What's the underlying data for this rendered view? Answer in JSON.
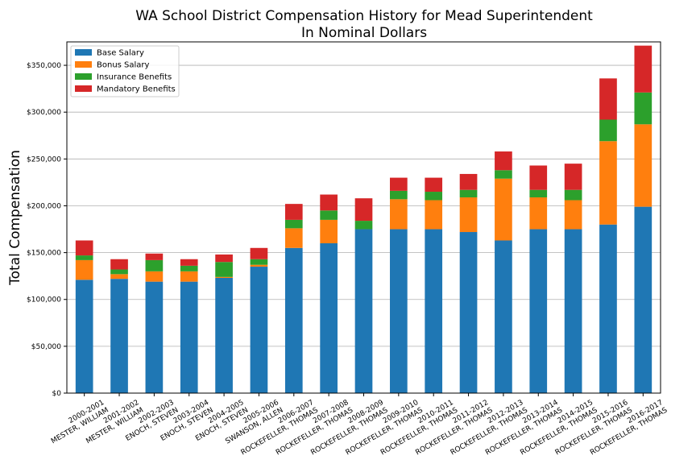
{
  "chart_data": {
    "type": "bar",
    "stacked": true,
    "title": "WA School District Compensation History for Mead Superintendent",
    "subtitle": "In Nominal Dollars",
    "xlabel": "",
    "ylabel": "Total Compensation",
    "ylim": [
      0,
      375000
    ],
    "yticks": [
      0,
      50000,
      100000,
      150000,
      200000,
      250000,
      300000,
      350000
    ],
    "ytick_labels": [
      "$0",
      "$50,000",
      "$100,000",
      "$150,000",
      "$200,000",
      "$250,000",
      "$300,000",
      "$350,000"
    ],
    "grid": true,
    "legend_position": "top-left",
    "categories": [
      [
        "2000-2001",
        "MESTER, WILLIAM"
      ],
      [
        "2001-2002",
        "MESTER, WILLIAM"
      ],
      [
        "2002-2003",
        "ENOCH, STEVEN"
      ],
      [
        "2003-2004",
        "ENOCH, STEVEN"
      ],
      [
        "2004-2005",
        "ENOCH, STEVEN"
      ],
      [
        "2005-2006",
        "SWANSON, ALLEN"
      ],
      [
        "2006-2007",
        "ROCKEFELLER, THOMAS"
      ],
      [
        "2007-2008",
        "ROCKEFELLER, THOMAS"
      ],
      [
        "2008-2009",
        "ROCKEFELLER, THOMAS"
      ],
      [
        "2009-2010",
        "ROCKEFELLER, THOMAS"
      ],
      [
        "2010-2011",
        "ROCKEFELLER, THOMAS"
      ],
      [
        "2011-2012",
        "ROCKEFELLER, THOMAS"
      ],
      [
        "2012-2013",
        "ROCKEFELLER, THOMAS"
      ],
      [
        "2013-2014",
        "ROCKEFELLER, THOMAS"
      ],
      [
        "2014-2015",
        "ROCKEFELLER, THOMAS"
      ],
      [
        "2015-2016",
        "ROCKEFELLER, THOMAS"
      ],
      [
        "2016-2017",
        "ROCKEFELLER, THOMAS"
      ]
    ],
    "series": [
      {
        "name": "Base Salary",
        "color": "#1f77b4",
        "values": [
          121000,
          122000,
          119000,
          119000,
          123000,
          135000,
          155000,
          160000,
          175000,
          175000,
          175000,
          172000,
          163000,
          175000,
          175000,
          180000,
          199000
        ]
      },
      {
        "name": "Bonus Salary",
        "color": "#ff7f0e",
        "values": [
          21000,
          5000,
          11000,
          11000,
          1000,
          2000,
          21000,
          25000,
          0,
          32000,
          31000,
          37000,
          66000,
          34000,
          31000,
          89000,
          88000
        ]
      },
      {
        "name": "Insurance Benefits",
        "color": "#2ca02c",
        "values": [
          5000,
          5000,
          12000,
          6000,
          16000,
          6000,
          9000,
          10000,
          9000,
          9000,
          9000,
          8000,
          9000,
          8000,
          11000,
          23000,
          34000
        ]
      },
      {
        "name": "Mandatory Benefits",
        "color": "#d62728",
        "values": [
          16000,
          11000,
          7000,
          7000,
          8000,
          12000,
          17000,
          17000,
          24000,
          14000,
          15000,
          17000,
          20000,
          26000,
          28000,
          44000,
          50000
        ]
      }
    ]
  }
}
